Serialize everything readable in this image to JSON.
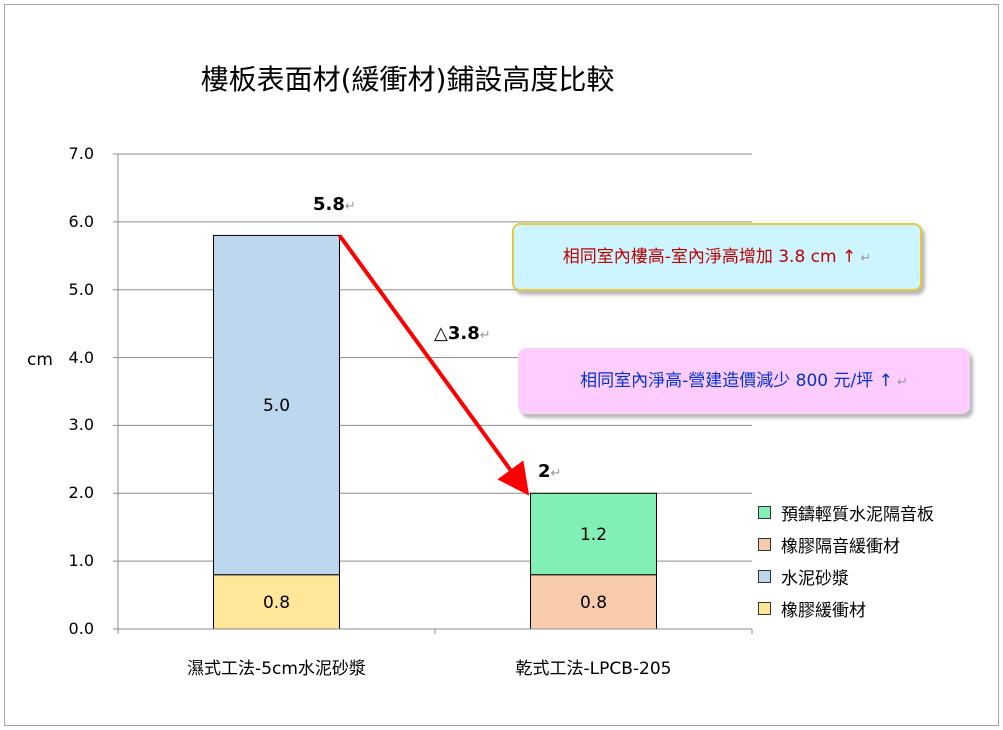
{
  "chart_data": {
    "type": "bar",
    "stacked": true,
    "title": "樓板表面材(緩衝材)鋪設高度比較",
    "ylabel": "cm",
    "ylim": [
      0,
      7
    ],
    "yticks": [
      "0.0",
      "1.0",
      "2.0",
      "3.0",
      "4.0",
      "5.0",
      "6.0",
      "7.0"
    ],
    "grid": true,
    "legend_position": "right",
    "categories": [
      "濕式工法-5cm水泥砂漿",
      "乾式工法-LPCB-205"
    ],
    "series": [
      {
        "name": "橡膠緩衝材",
        "color": "#ffe699",
        "values": [
          0.8,
          0
        ]
      },
      {
        "name": "水泥砂漿",
        "color": "#bdd7ee",
        "values": [
          5.0,
          0
        ]
      },
      {
        "name": "橡膠隔音緩衝材",
        "color": "#f8cbad",
        "values": [
          0,
          0.8
        ]
      },
      {
        "name": "預鑄輕質水泥隔音板",
        "color": "#82f0b4",
        "values": [
          0,
          1.2
        ]
      }
    ],
    "segment_labels": [
      "0.8",
      "5.0",
      "0.8",
      "1.2"
    ],
    "total_labels": [
      "5.8",
      "2"
    ],
    "difference_label": "△3.8",
    "callouts": [
      "相同室內樓高-室內淨高增加 3.8 cm ↑",
      "相同室內淨高-營建造價減少 800 元/坪 ↑"
    ],
    "legend": [
      "預鑄輕質水泥隔音板",
      "橡膠隔音緩衝材",
      "水泥砂漿",
      "橡膠緩衝材"
    ]
  }
}
